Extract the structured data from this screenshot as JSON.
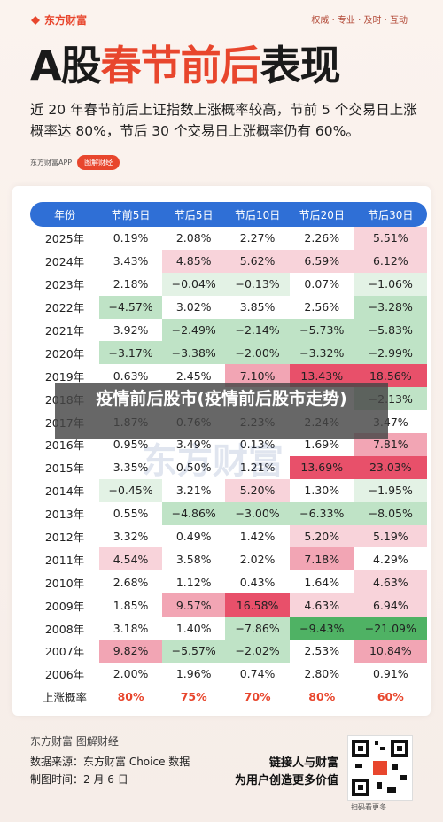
{
  "brand": {
    "name": "东方财富",
    "slogan": "权威 · 专业 · 及时 · 互动"
  },
  "title": {
    "part1": "A股",
    "part2": "春节前后",
    "part3": "表现"
  },
  "subtitle": "近 20 年春节前后上证指数上涨概率较高，节前 5 个交易日上涨概率达 80%，节后 30 个交易日上涨概率仍有 60%。",
  "tags": {
    "app": "东方财富APP",
    "pill": "图解财经"
  },
  "table": {
    "headers": [
      "年份",
      "节前5日",
      "节后5日",
      "节后10日",
      "节后20日",
      "节后30日"
    ],
    "rows": [
      [
        "2025年",
        "0.19%",
        "2.08%",
        "2.27%",
        "2.26%",
        "5.51%"
      ],
      [
        "2024年",
        "3.43%",
        "4.85%",
        "5.62%",
        "6.59%",
        "6.12%"
      ],
      [
        "2023年",
        "2.18%",
        "−0.04%",
        "−0.13%",
        "0.07%",
        "−1.06%"
      ],
      [
        "2022年",
        "−4.57%",
        "3.02%",
        "3.85%",
        "2.56%",
        "−3.28%"
      ],
      [
        "2021年",
        "3.92%",
        "−2.49%",
        "−2.14%",
        "−5.73%",
        "−5.83%"
      ],
      [
        "2020年",
        "−3.17%",
        "−3.38%",
        "−2.00%",
        "−3.32%",
        "−2.99%"
      ],
      [
        "2019年",
        "0.63%",
        "2.45%",
        "7.10%",
        "13.43%",
        "18.56%"
      ],
      [
        "2018年",
        "",
        "",
        "",
        "",
        "−2.13%"
      ],
      [
        "2017年",
        "1.87%",
        "0.76%",
        "2.23%",
        "2.24%",
        "3.47%"
      ],
      [
        "2016年",
        "0.95%",
        "3.49%",
        "0.13%",
        "1.69%",
        "7.81%"
      ],
      [
        "2015年",
        "3.35%",
        "0.50%",
        "1.21%",
        "13.69%",
        "23.03%"
      ],
      [
        "2014年",
        "−0.45%",
        "3.21%",
        "5.20%",
        "1.30%",
        "−1.95%"
      ],
      [
        "2013年",
        "0.55%",
        "−4.86%",
        "−3.00%",
        "−6.33%",
        "−8.05%"
      ],
      [
        "2012年",
        "3.32%",
        "0.49%",
        "1.42%",
        "5.20%",
        "5.19%"
      ],
      [
        "2011年",
        "4.54%",
        "3.58%",
        "2.02%",
        "7.18%",
        "4.29%"
      ],
      [
        "2010年",
        "2.68%",
        "1.12%",
        "0.43%",
        "1.64%",
        "4.63%"
      ],
      [
        "2009年",
        "1.85%",
        "9.57%",
        "16.58%",
        "4.63%",
        "6.94%"
      ],
      [
        "2008年",
        "3.18%",
        "1.40%",
        "−7.86%",
        "−9.43%",
        "−21.09%"
      ],
      [
        "2007年",
        "9.82%",
        "−5.57%",
        "−2.02%",
        "2.53%",
        "10.84%"
      ],
      [
        "2006年",
        "2.00%",
        "1.96%",
        "0.74%",
        "2.80%",
        "0.91%"
      ]
    ],
    "summary": [
      "上涨概率",
      "80%",
      "75%",
      "70%",
      "80%",
      "60%"
    ]
  },
  "watermark": "东方财富",
  "overlay": "疫情前后股市(疫情前后股市走势)",
  "footer": {
    "brand": "东方财富 图解财经",
    "source": "数据来源：东方财富 Choice 数据",
    "time": "制图时间：2 月 6 日",
    "slogan1": "链接人与财富",
    "slogan2": "为用户创造更多价值",
    "qr_caption": "扫码看更多"
  }
}
